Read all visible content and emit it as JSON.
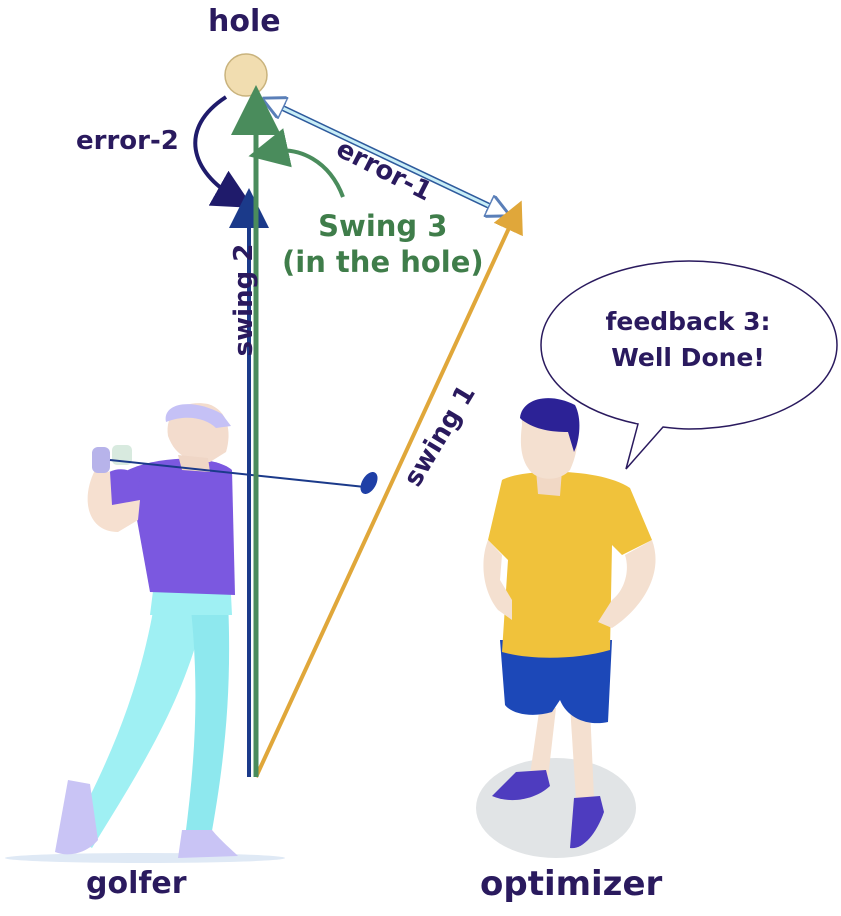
{
  "labels": {
    "hole": "hole",
    "error_2": "error-2",
    "error_1": "error-1",
    "swing_3_line1": "Swing 3",
    "swing_3_line2": "(in the hole)",
    "swing_2": "swing 2",
    "swing_1": "swing 1",
    "feedback_line1": "feedback 3:",
    "feedback_line2": "Well Done!",
    "golfer": "golfer",
    "optimizer": "optimizer"
  },
  "colors": {
    "swing_1": "#e0a73a",
    "swing_2": "#1b3a8a",
    "swing_3": "#4a8c5c",
    "error_1": "#c8eef7",
    "error_2": "#1f1b6b",
    "text_dark": "#2a1a5e",
    "text_green": "#3f7d4a",
    "hole": "#f1ddb0"
  }
}
